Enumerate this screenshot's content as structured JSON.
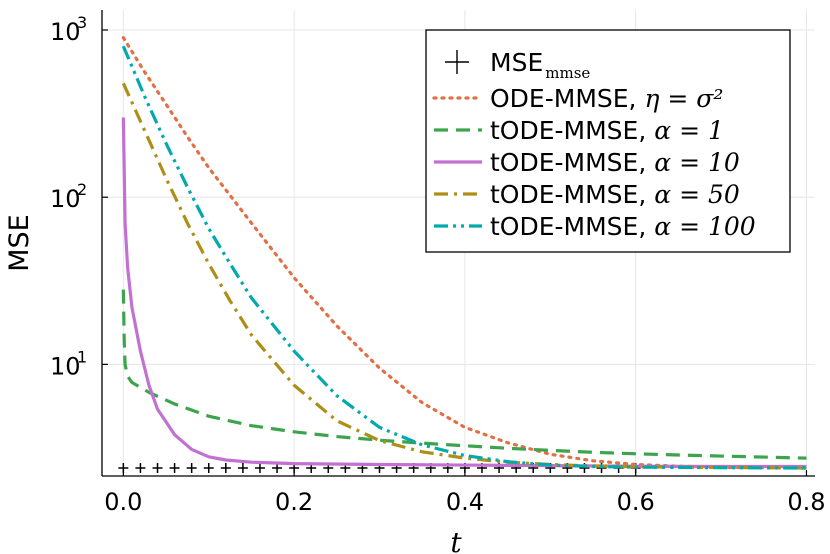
{
  "chart_data": {
    "type": "line",
    "title": "",
    "xlabel": "t",
    "ylabel": "MSE",
    "xlim": [
      -0.025,
      0.81
    ],
    "ylim": [
      2.15,
      1000
    ],
    "yscale": "log",
    "grid": true,
    "legend_position": "top-right",
    "xticks": [
      {
        "value": 0.0,
        "label": "0.0"
      },
      {
        "value": 0.2,
        "label": "0.2"
      },
      {
        "value": 0.4,
        "label": "0.4"
      },
      {
        "value": 0.6,
        "label": "0.6"
      },
      {
        "value": 0.8,
        "label": "0.8"
      }
    ],
    "yticks": [
      {
        "value": 10,
        "base": "10",
        "exp": "1"
      },
      {
        "value": 100,
        "base": "10",
        "exp": "2"
      },
      {
        "value": 1000,
        "base": "10",
        "exp": "3"
      }
    ],
    "series": [
      {
        "name": "MSE",
        "subscript": "mmse",
        "suffix": "",
        "color": "#000000",
        "style": "markers-plus",
        "x": [
          0.0,
          0.02,
          0.04,
          0.06,
          0.08,
          0.1,
          0.12,
          0.14,
          0.16,
          0.18,
          0.2,
          0.22,
          0.24,
          0.26,
          0.28,
          0.3,
          0.32,
          0.34,
          0.36,
          0.38,
          0.4,
          0.42,
          0.44,
          0.46,
          0.48,
          0.5,
          0.52,
          0.54,
          0.56,
          0.58,
          0.6
        ],
        "y": [
          2.4,
          2.4,
          2.4,
          2.4,
          2.4,
          2.4,
          2.4,
          2.4,
          2.4,
          2.4,
          2.4,
          2.4,
          2.4,
          2.4,
          2.4,
          2.4,
          2.4,
          2.4,
          2.4,
          2.4,
          2.4,
          2.4,
          2.4,
          2.4,
          2.4,
          2.4,
          2.4,
          2.4,
          2.4,
          2.4,
          2.4
        ]
      },
      {
        "name": "ODE-MMSE, ",
        "subscript": "",
        "suffix": "η = σ²",
        "color": "#E26F46",
        "style": "dotted",
        "x": [
          0.0,
          0.025,
          0.05,
          0.075,
          0.1,
          0.15,
          0.2,
          0.25,
          0.3,
          0.35,
          0.4,
          0.45,
          0.5,
          0.55,
          0.6,
          0.65,
          0.7,
          0.75,
          0.8
        ],
        "y": [
          900,
          560,
          360,
          230,
          150,
          70,
          33,
          17,
          9.5,
          5.9,
          4.2,
          3.4,
          2.9,
          2.65,
          2.52,
          2.46,
          2.43,
          2.41,
          2.4
        ]
      },
      {
        "name": "tODE-MMSE, ",
        "subscript": "",
        "suffix": "α = 1",
        "color": "#3DA44D",
        "style": "dashed",
        "x": [
          0.0,
          0.001,
          0.002,
          0.005,
          0.01,
          0.03,
          0.06,
          0.1,
          0.15,
          0.2,
          0.25,
          0.3,
          0.35,
          0.4,
          0.45,
          0.5,
          0.55,
          0.6,
          0.65,
          0.7,
          0.75,
          0.8
        ],
        "y": [
          28,
          14,
          10,
          8.5,
          7.8,
          6.8,
          5.8,
          4.9,
          4.3,
          3.95,
          3.7,
          3.52,
          3.38,
          3.26,
          3.15,
          3.06,
          2.98,
          2.92,
          2.87,
          2.83,
          2.79,
          2.75
        ]
      },
      {
        "name": "tODE-MMSE, ",
        "subscript": "",
        "suffix": "α = 10",
        "color": "#C271D2",
        "style": "solid",
        "x": [
          0.0,
          0.002,
          0.005,
          0.01,
          0.02,
          0.03,
          0.04,
          0.06,
          0.08,
          0.1,
          0.12,
          0.15,
          0.2,
          0.3,
          0.4,
          0.5,
          0.6,
          0.7,
          0.8
        ],
        "y": [
          300,
          70,
          38,
          22,
          12,
          7.5,
          5.4,
          3.8,
          3.1,
          2.8,
          2.68,
          2.6,
          2.55,
          2.52,
          2.5,
          2.48,
          2.46,
          2.45,
          2.45
        ]
      },
      {
        "name": "tODE-MMSE, ",
        "subscript": "",
        "suffix": "α = 50",
        "color": "#AD8F18",
        "style": "dashdot",
        "x": [
          0.0,
          0.025,
          0.05,
          0.075,
          0.1,
          0.125,
          0.15,
          0.2,
          0.25,
          0.3,
          0.35,
          0.4,
          0.45,
          0.5,
          0.55,
          0.6,
          0.65,
          0.7,
          0.8
        ],
        "y": [
          480,
          250,
          130,
          70,
          40,
          24,
          15,
          7.5,
          4.6,
          3.5,
          3.0,
          2.75,
          2.6,
          2.52,
          2.47,
          2.44,
          2.43,
          2.42,
          2.4
        ]
      },
      {
        "name": "tODE-MMSE, ",
        "subscript": "",
        "suffix": "α = 100",
        "color": "#00A9AD",
        "style": "dashdotdot",
        "x": [
          0.0,
          0.025,
          0.05,
          0.075,
          0.1,
          0.125,
          0.15,
          0.2,
          0.25,
          0.3,
          0.35,
          0.4,
          0.45,
          0.5,
          0.55,
          0.6,
          0.65,
          0.7,
          0.8
        ],
        "y": [
          800,
          400,
          210,
          115,
          65,
          40,
          25,
          12,
          6.5,
          4.2,
          3.3,
          2.85,
          2.62,
          2.5,
          2.45,
          2.43,
          2.42,
          2.41,
          2.4
        ]
      }
    ]
  }
}
